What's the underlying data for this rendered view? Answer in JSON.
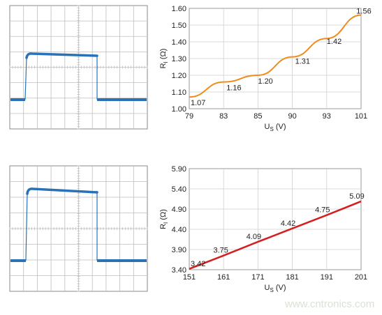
{
  "chart_data": [
    {
      "type": "line",
      "panel": "top-right",
      "x": [
        79,
        83,
        85,
        90,
        93,
        101
      ],
      "y": [
        1.07,
        1.16,
        1.2,
        1.31,
        1.42,
        1.56
      ],
      "data_labels": [
        "1.07",
        "1.16",
        "1.20",
        "1.31",
        "1.42",
        "1.56"
      ],
      "x_ticks": [
        "79",
        "83",
        "85",
        "90",
        "93",
        "101"
      ],
      "y_ticks": [
        "1.00",
        "1.10",
        "1.20",
        "1.30",
        "1.40",
        "1.50",
        "1.60"
      ],
      "ylim": [
        1.0,
        1.6
      ],
      "xlabel": "US (V)",
      "xlabel_main": "U",
      "xlabel_sub": "S",
      "xlabel_unit": "(V)",
      "ylabel": "RI (Ω)",
      "ylabel_main": "R",
      "ylabel_sub": "I",
      "ylabel_unit": "(Ω)",
      "grid": true,
      "color": "#f08c1e"
    },
    {
      "type": "line",
      "panel": "bottom-right",
      "x": [
        151,
        161,
        171,
        181,
        191,
        201
      ],
      "y": [
        3.42,
        3.75,
        4.09,
        4.42,
        4.75,
        5.09
      ],
      "data_labels": [
        "3.42",
        "3.75",
        "4.09",
        "4.42",
        "4.75",
        "5.09"
      ],
      "x_ticks": [
        "151",
        "161",
        "171",
        "181",
        "191",
        "201"
      ],
      "y_ticks": [
        "3.40",
        "3.90",
        "4.40",
        "4.90",
        "5.40",
        "5.90"
      ],
      "ylim": [
        3.4,
        5.9
      ],
      "xlabel": "US (V)",
      "xlabel_main": "U",
      "xlabel_sub": "S",
      "xlabel_unit": "(V)",
      "ylabel": "RI (Ω)",
      "ylabel_main": "R",
      "ylabel_sub": "I",
      "ylabel_unit": "(Ω)",
      "grid": true,
      "color": "#d42020"
    }
  ],
  "scope_traces": {
    "color": "#2a72b8",
    "grid_color": "#bdbdbd",
    "note_top": "pulse waveform, flat top",
    "note_bottom": "pulse waveform, slight overshoot then droop"
  },
  "watermark": "www.cntronics.com"
}
